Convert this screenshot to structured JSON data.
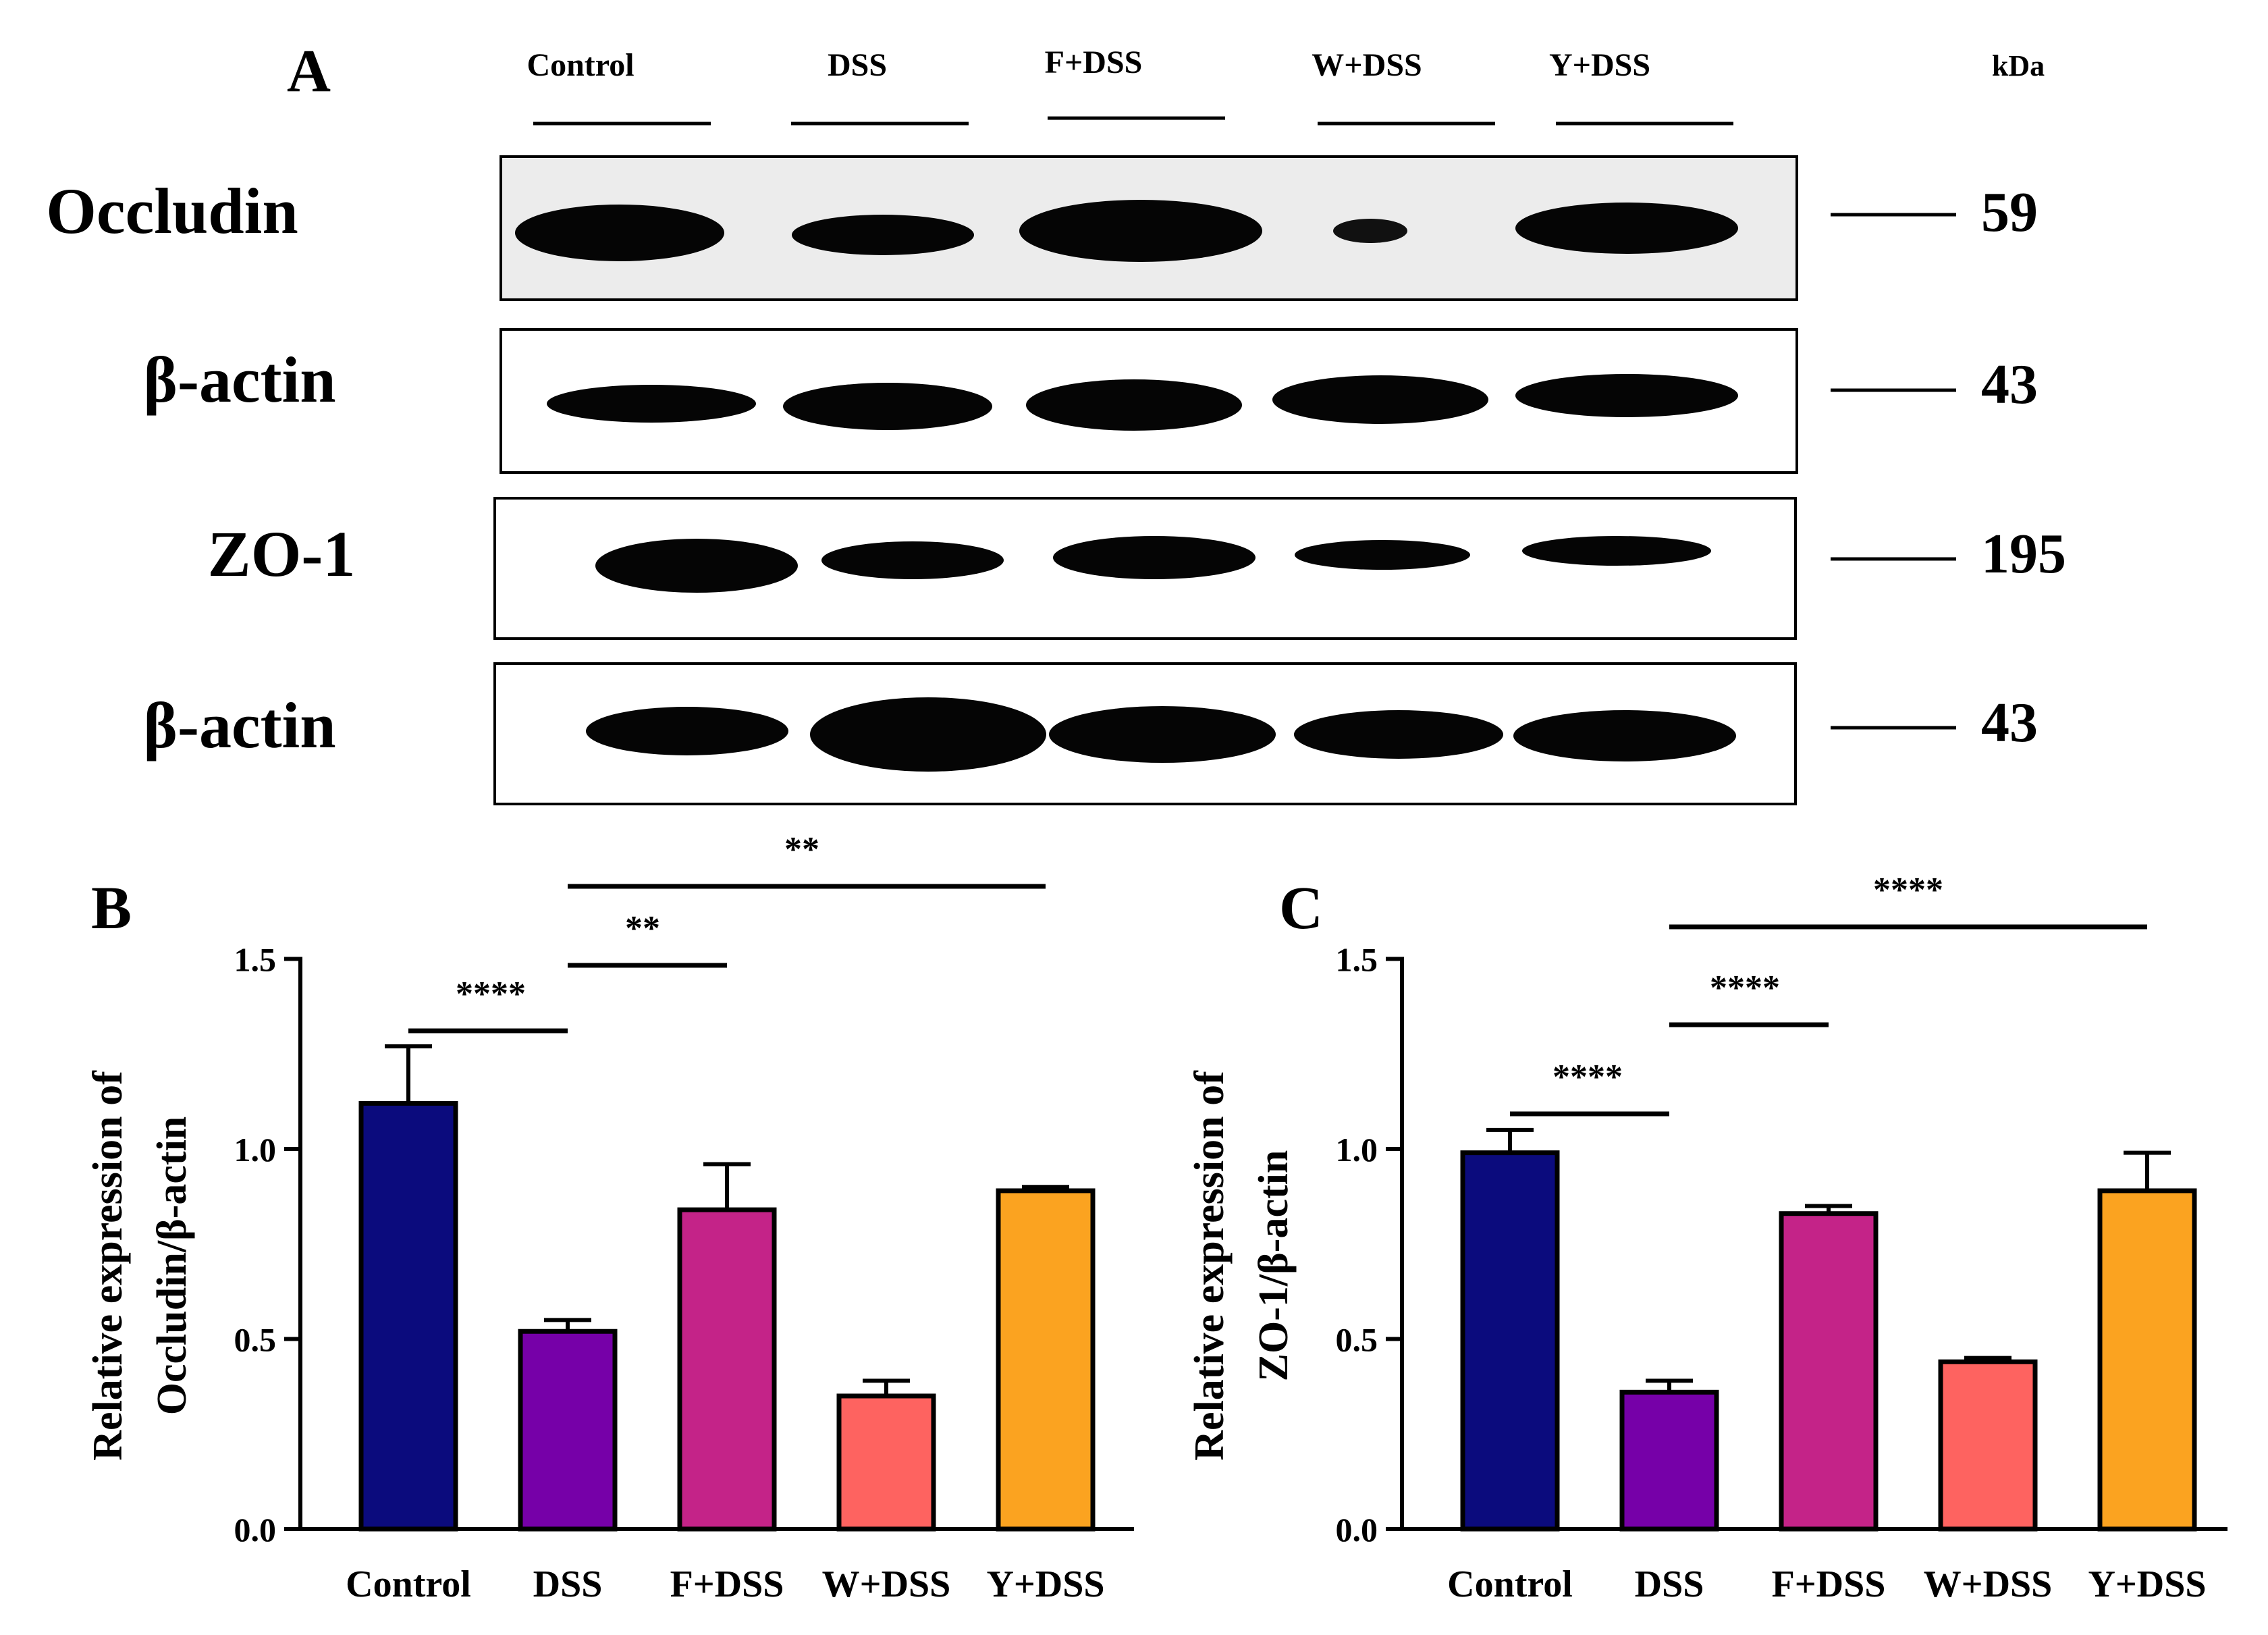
{
  "panel_a": {
    "letter": "A",
    "lanes": [
      "Control",
      "DSS",
      "F+DSS",
      "W+DSS",
      "Y+DSS"
    ],
    "kda_label": "kDa",
    "blots": [
      {
        "label": "Occludin",
        "kda": "59",
        "intensity": [
          0.95,
          0.7,
          1.0,
          0.35,
          0.85
        ]
      },
      {
        "label": "β-actin",
        "kda": "43",
        "intensity": [
          0.75,
          0.85,
          0.9,
          0.9,
          0.8
        ]
      },
      {
        "label": "ZO-1",
        "kda": "195",
        "intensity": [
          0.9,
          0.7,
          0.75,
          0.55,
          0.5
        ]
      },
      {
        "label": "β-actin",
        "kda": "43",
        "intensity": [
          0.8,
          1.0,
          0.9,
          0.85,
          0.85
        ]
      }
    ]
  },
  "chart_data": [
    {
      "panel": "B",
      "type": "bar",
      "categories": [
        "Control",
        "DSS",
        "F+DSS",
        "W+DSS",
        "Y+DSS"
      ],
      "values": [
        1.12,
        0.52,
        0.84,
        0.35,
        0.89
      ],
      "errors": [
        0.15,
        0.03,
        0.12,
        0.04,
        0.01
      ],
      "colors": [
        "#0b0b7d",
        "#7600a8",
        "#c42388",
        "#fe6360",
        "#fba320"
      ],
      "ylabel_lines": [
        "Relative expression of",
        "Occludin/β-actin"
      ],
      "ylim": [
        0,
        1.5
      ],
      "yticks": [
        "0.0",
        "0.5",
        "1.0",
        "1.5"
      ],
      "significance": [
        {
          "from": 0,
          "to": 1,
          "label": "****"
        },
        {
          "from": 1,
          "to": 2,
          "label": "**"
        },
        {
          "from": 1,
          "to": 4,
          "label": "**"
        }
      ]
    },
    {
      "panel": "C",
      "type": "bar",
      "categories": [
        "Control",
        "DSS",
        "F+DSS",
        "W+DSS",
        "Y+DSS"
      ],
      "values": [
        0.99,
        0.36,
        0.83,
        0.44,
        0.89
      ],
      "errors": [
        0.06,
        0.03,
        0.02,
        0.01,
        0.1
      ],
      "colors": [
        "#0b0b7d",
        "#7600a8",
        "#c42388",
        "#fe6360",
        "#fba320"
      ],
      "ylabel_lines": [
        "Relative expression of",
        "ZO-1/β-actin"
      ],
      "ylim": [
        0,
        1.5
      ],
      "yticks": [
        "0.0",
        "0.5",
        "1.0",
        "1.5"
      ],
      "significance": [
        {
          "from": 0,
          "to": 1,
          "label": "****"
        },
        {
          "from": 1,
          "to": 2,
          "label": "****"
        },
        {
          "from": 1,
          "to": 4,
          "label": "****"
        }
      ]
    }
  ]
}
